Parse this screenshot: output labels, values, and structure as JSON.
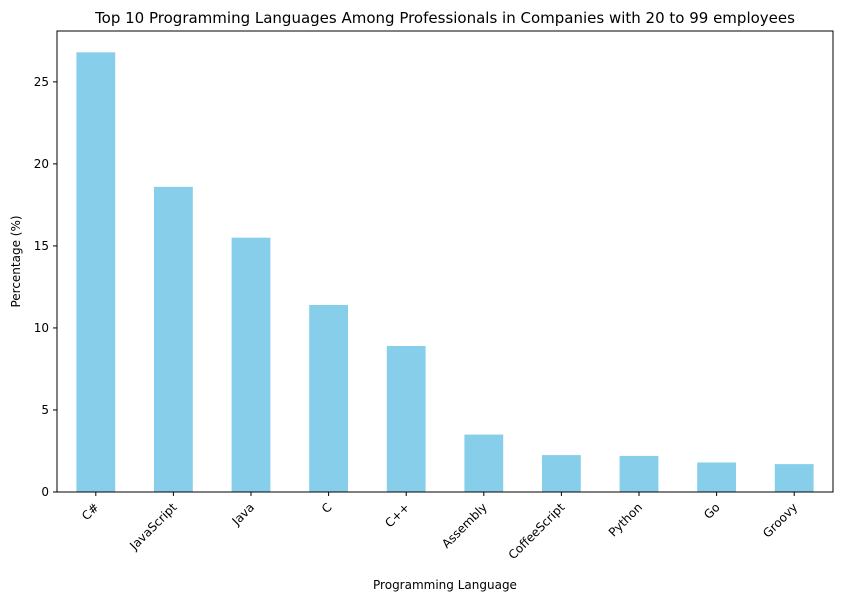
{
  "chart_data": {
    "type": "bar",
    "title": "Top 10 Programming Languages Among Professionals in Companies with 20 to 99 employees",
    "xlabel": "Programming Language",
    "ylabel": "Percentage (%)",
    "categories": [
      "C#",
      "JavaScript",
      "Java",
      "C",
      "C++",
      "Assembly",
      "CoffeeScript",
      "Python",
      "Go",
      "Groovy"
    ],
    "values": [
      26.8,
      18.6,
      15.5,
      11.4,
      8.9,
      3.5,
      2.25,
      2.2,
      1.8,
      1.7
    ],
    "ylim": [
      0,
      28.1
    ],
    "yticks": [
      0,
      5,
      10,
      15,
      20,
      25
    ],
    "bar_color": "#87CEEB",
    "grid": false,
    "legend": "none"
  }
}
